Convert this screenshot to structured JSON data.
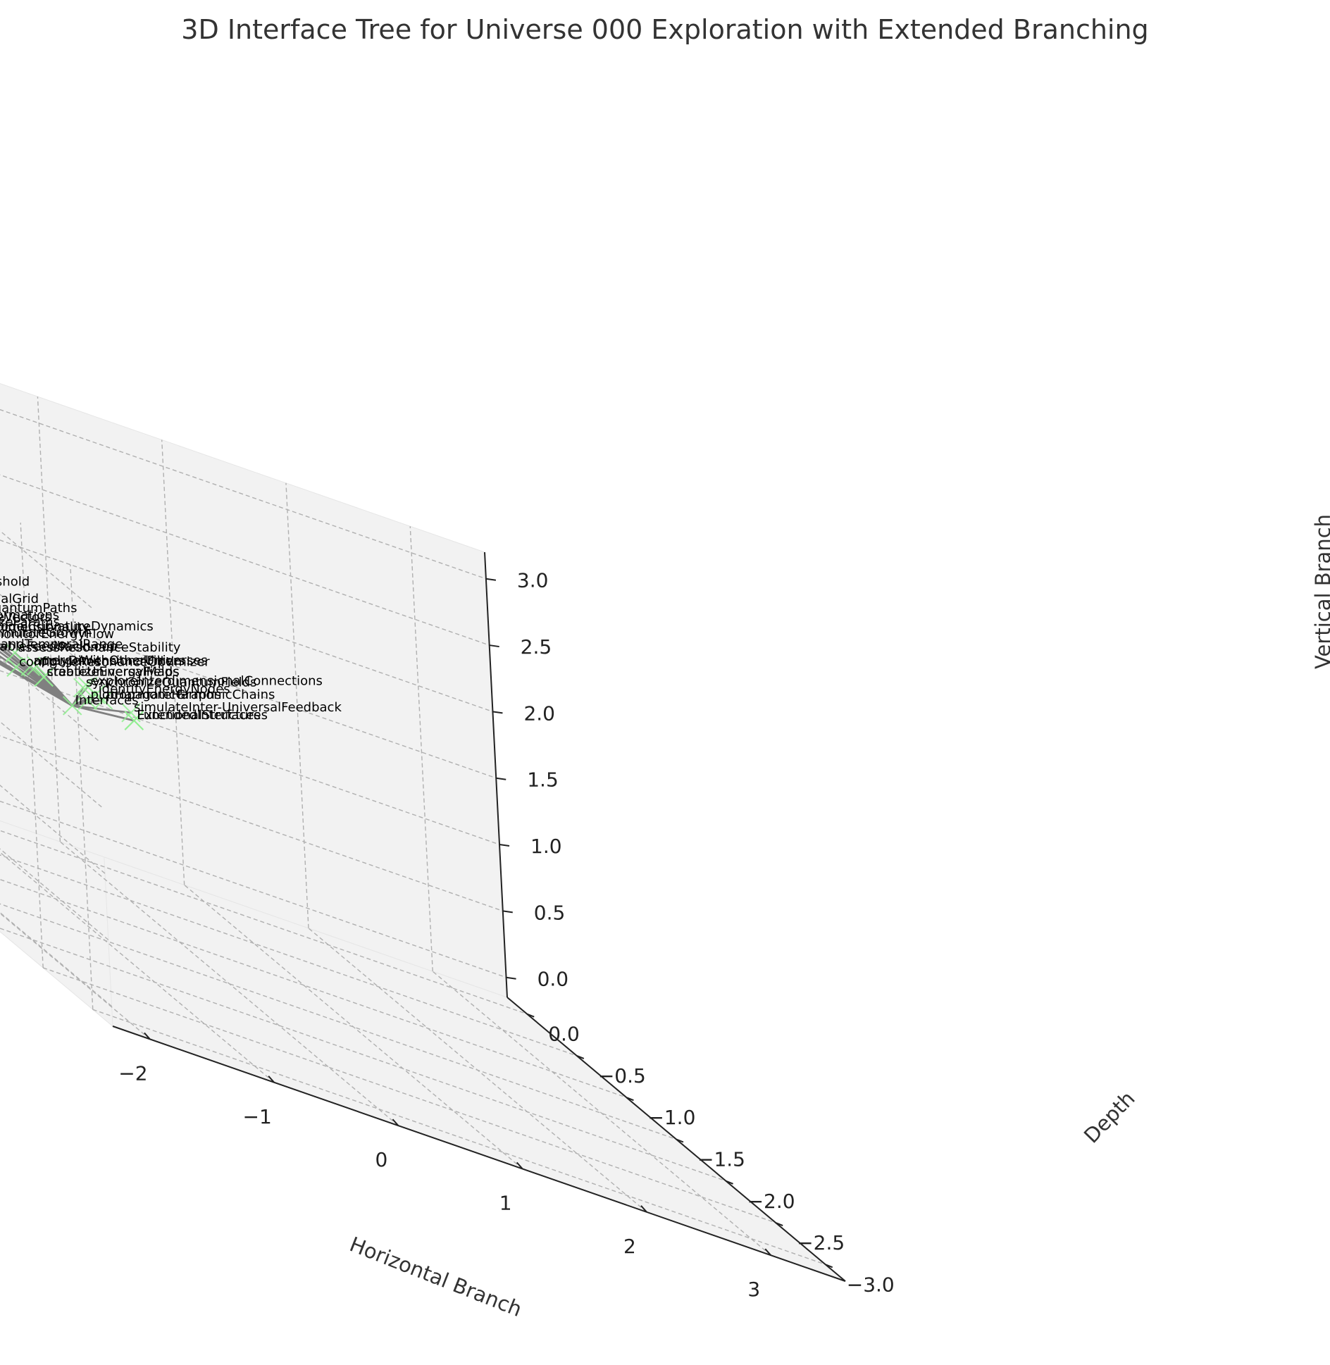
{
  "chart_data": {
    "type": "3d-tree",
    "title": "3D Interface Tree for Universe 000 Exploration with Extended Branching",
    "xlabel": "Horizontal Branch",
    "ylabel": "Depth",
    "zlabel": "Vertical Branch",
    "xlim": [
      -2.3,
      3.6
    ],
    "ylim": [
      -3.2,
      0.2
    ],
    "zlim": [
      -0.15,
      3.2
    ],
    "x_ticks": [
      "−2",
      "−1",
      "0",
      "1",
      "2",
      "3"
    ],
    "x_tick_values": [
      -2,
      -1,
      0,
      1,
      2,
      3
    ],
    "y_ticks": [
      "0.0",
      "−0.5",
      "−1.0",
      "−1.5",
      "−2.0",
      "−2.5",
      "−3.0"
    ],
    "y_tick_values": [
      0.0,
      -0.5,
      -1.0,
      -1.5,
      -2.0,
      -2.5,
      -3.0
    ],
    "z_ticks": [
      "0.0",
      "0.5",
      "1.0",
      "1.5",
      "2.0",
      "2.5",
      "3.0"
    ],
    "z_tick_values": [
      0.0,
      0.5,
      1.0,
      1.5,
      2.0,
      2.5,
      3.0
    ],
    "grid": true,
    "colors": {
      "pane": "#f2f2f2",
      "grid": "#b0b0b0",
      "edge": "#808080",
      "marker": "#90ee90",
      "text": "#000000"
    },
    "nodes": [
      {
        "label": "Interfaces",
        "x": 0.0,
        "y": 0.0,
        "z": 1.0
      },
      {
        "label": "ExtendedInterfaces",
        "x": 0.5,
        "y": 0.0,
        "z": 1.05
      },
      {
        "label": "FunctionalStructures",
        "x": 0.5,
        "y": 0.0,
        "z": 1.05
      },
      {
        "label": "plotHarmonicGraphs",
        "x": 0.05,
        "y": -0.1,
        "z": 1.12
      },
      {
        "label": "simulateInter-UniversalFeedback",
        "x": 0.4,
        "y": -0.1,
        "z": 1.14
      },
      {
        "label": "createUniversalMaps",
        "x": -0.3,
        "y": -0.1,
        "z": 1.18
      },
      {
        "label": "stabilizeEnergyFields",
        "x": -0.3,
        "y": -0.1,
        "z": 1.18
      },
      {
        "label": "propagateHarmonicChains",
        "x": 0.1,
        "y": -0.2,
        "z": 1.2
      },
      {
        "label": "configureResonanceOptimizer",
        "x": -0.6,
        "y": -0.2,
        "z": 1.22
      },
      {
        "label": "identifyEnergyNodes",
        "x": 0.0,
        "y": -0.25,
        "z": 1.24
      },
      {
        "label": "synchronizeQuantumFields",
        "x": -0.1,
        "y": -0.25,
        "z": 1.26
      },
      {
        "label": "exploreInterdimensionalConnections",
        "x": -0.1,
        "y": -0.3,
        "z": 1.3
      },
      {
        "label": "applyDimensionalFilters",
        "x": -0.6,
        "y": -0.35,
        "z": 1.32
      },
      {
        "label": "mergeWithOtherUniverses",
        "x": -0.55,
        "y": -0.35,
        "z": 1.34
      },
      {
        "label": "enableFeedbackLoop",
        "x": -1.0,
        "y": -0.35,
        "z": 1.3
      },
      {
        "label": "expandTemporalRange",
        "x": -1.05,
        "y": -0.35,
        "z": 1.3
      },
      {
        "label": "reduceDimensionality",
        "x": -1.3,
        "y": -0.4,
        "z": 1.38
      },
      {
        "label": "assessResonanceStability",
        "x": -0.8,
        "y": -0.45,
        "z": 1.42
      },
      {
        "label": "simulateGrowth",
        "x": -1.05,
        "y": -0.5,
        "z": 1.48
      },
      {
        "label": "monitorEnergyFlow",
        "x": -1.05,
        "y": -0.5,
        "z": 1.47
      },
      {
        "label": "alignPhaseVectors",
        "x": -1.5,
        "y": -0.5,
        "z": 1.45
      },
      {
        "label": "mapTransformations",
        "x": -1.55,
        "y": -0.5,
        "z": 1.45
      },
      {
        "label": "initializeParams",
        "x": -1.3,
        "y": -0.5,
        "z": 1.48
      },
      {
        "label": "modelCurvatureDynamics",
        "x": -1.15,
        "y": -0.6,
        "z": 1.56
      },
      {
        "label": "configureSpatialGrid",
        "x": -1.75,
        "y": -0.55,
        "z": 1.54
      },
      {
        "label": "traceQuantumPaths",
        "x": -1.45,
        "y": -0.6,
        "z": 1.6
      },
      {
        "label": "setFrequencyThreshold",
        "x": -2.0,
        "y": -0.6,
        "z": 1.62
      }
    ]
  }
}
